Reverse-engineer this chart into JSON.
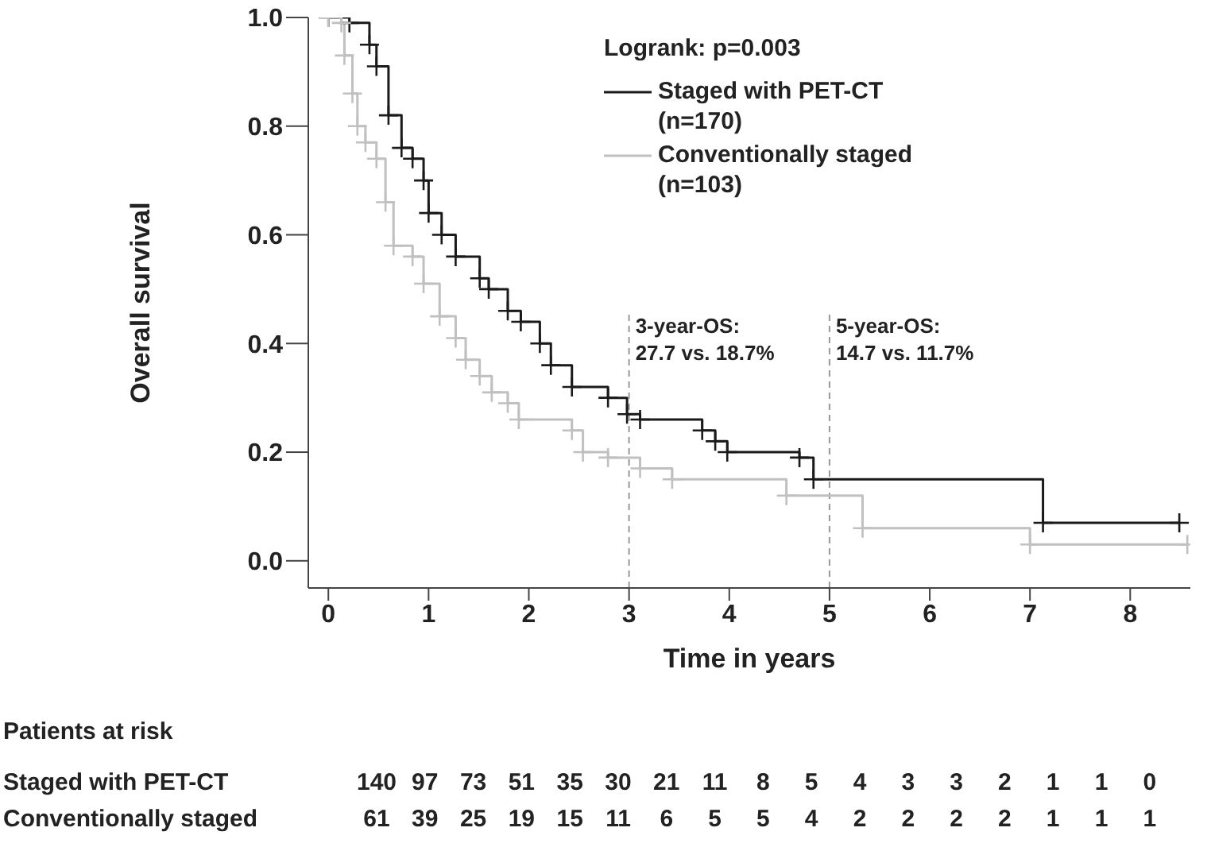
{
  "chart_data": {
    "type": "step",
    "xlabel": "Time in years",
    "ylabel": "Overall survival",
    "xlim": [
      -0.2,
      8.6
    ],
    "xticks": [
      0,
      1,
      2,
      3,
      4,
      5,
      6,
      7,
      8
    ],
    "ylim": [
      -0.05,
      1.0
    ],
    "yticks": [
      {
        "value": 0,
        "label": "0.0"
      },
      0.2,
      0.4,
      0.6,
      0.8,
      {
        "value": 1,
        "label": "1.0"
      }
    ],
    "grid": false,
    "legend": "top right",
    "marker": "cross",
    "line_style": "solid",
    "series": [
      {
        "name": "Staged with PET-CT (n=170)",
        "color": "#1a1a1a",
        "x": [
          0,
          0.21,
          0.41,
          0.48,
          0.6,
          0.73,
          0.84,
          0.95,
          1.0,
          1.13,
          1.27,
          1.51,
          1.6,
          1.79,
          1.92,
          2.11,
          2.22,
          2.43,
          2.79,
          2.98,
          3.11,
          3.73,
          3.86,
          3.98,
          4.7,
          4.84,
          7.13,
          8.49
        ],
        "values": [
          1.0,
          0.99,
          0.95,
          0.91,
          0.82,
          0.76,
          0.74,
          0.7,
          0.64,
          0.6,
          0.56,
          0.52,
          0.5,
          0.46,
          0.44,
          0.4,
          0.36,
          0.32,
          0.3,
          0.27,
          0.26,
          0.24,
          0.22,
          0.2,
          0.19,
          0.15,
          0.07,
          0.07
        ]
      },
      {
        "name": "Conventionally staged (n=103)",
        "color": "#c0c0c0",
        "x": [
          0,
          0.13,
          0.16,
          0.24,
          0.29,
          0.37,
          0.48,
          0.57,
          0.65,
          0.84,
          0.95,
          1.11,
          1.27,
          1.37,
          1.51,
          1.63,
          1.79,
          1.9,
          2.43,
          2.54,
          2.79,
          3.11,
          3.43,
          4.57,
          5.33,
          7.0,
          8.57
        ],
        "values": [
          1.0,
          0.99,
          0.93,
          0.86,
          0.8,
          0.77,
          0.74,
          0.66,
          0.58,
          0.56,
          0.51,
          0.45,
          0.41,
          0.37,
          0.34,
          0.31,
          0.29,
          0.26,
          0.24,
          0.2,
          0.19,
          0.17,
          0.15,
          0.12,
          0.06,
          0.03,
          0.03
        ]
      }
    ],
    "ref_lines": [
      {
        "axis": "x",
        "value": 3,
        "label": "3-year-OS:\n27.7 vs. 18.7%",
        "color": "#999999",
        "line_style": "dashed"
      },
      {
        "axis": "x",
        "value": 5,
        "label": "5-year-OS:\n14.7 vs. 11.7%",
        "color": "#999999",
        "line_style": "dashed"
      }
    ],
    "annotations": [
      "Logrank: p=0.003",
      "Patients at risk",
      "Staged with PET-CT",
      "140 97 73 51 35 30 21 11 8 5 4 3 3 2 1 1 0",
      "Conventionally staged",
      "61 39 25 19 15 11 6 5 5 4 2 2 2 2 1 1 1"
    ]
  }
}
